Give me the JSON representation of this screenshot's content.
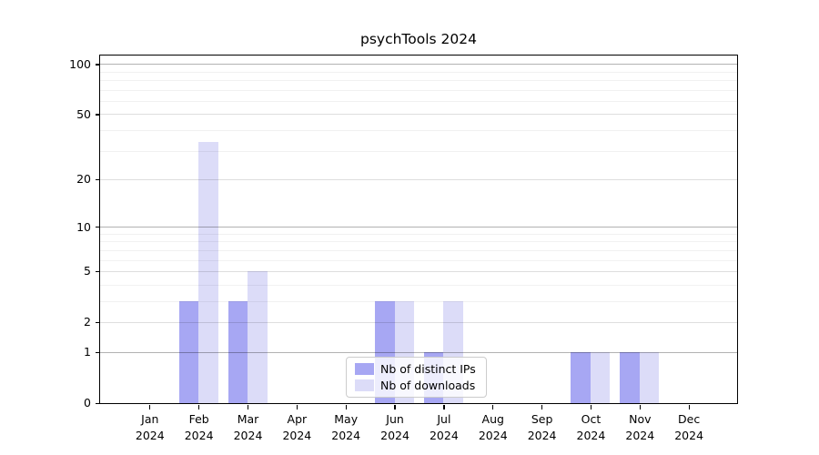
{
  "figure": {
    "title": "psychTools 2024"
  },
  "legend": {
    "items": [
      {
        "label": "Nb of distinct IPs",
        "color": "#a7a7f3"
      },
      {
        "label": "Nb of downloads",
        "color": "#dcdcf8"
      }
    ]
  },
  "chart_data": {
    "type": "bar",
    "title": "psychTools 2024",
    "categories": [
      "Jan 2024",
      "Feb 2024",
      "Mar 2024",
      "Apr 2024",
      "May 2024",
      "Jun 2024",
      "Jul 2024",
      "Aug 2024",
      "Sep 2024",
      "Oct 2024",
      "Nov 2024",
      "Dec 2024"
    ],
    "series": [
      {
        "name": "Nb of distinct IPs",
        "color": "#a7a7f3",
        "values": [
          0,
          3,
          3,
          0,
          0,
          3,
          1,
          0,
          0,
          1,
          1,
          0
        ]
      },
      {
        "name": "Nb of downloads",
        "color": "#dcdcf8",
        "values": [
          0,
          34,
          5,
          0,
          0,
          3,
          3,
          0,
          0,
          1,
          1,
          0
        ]
      }
    ],
    "xlabel": "",
    "ylabel": "",
    "yscale": "log1p",
    "ylim": [
      0,
      113
    ],
    "yticks": [
      0,
      1,
      2,
      5,
      10,
      20,
      50,
      100
    ],
    "minor_yticks": [
      3,
      4,
      6,
      7,
      8,
      9,
      30,
      40,
      60,
      70,
      80,
      90
    ],
    "decade_yticks": [
      1,
      10,
      100
    ],
    "grid": "horizontal",
    "legend_position": "lower center"
  }
}
